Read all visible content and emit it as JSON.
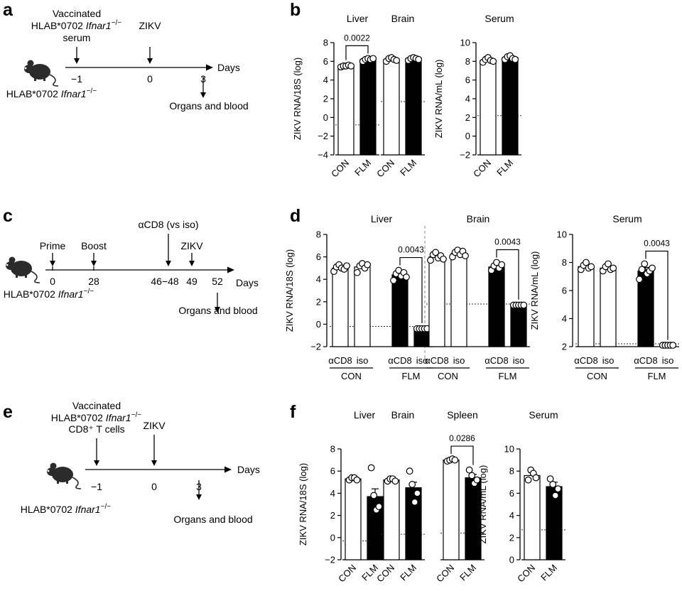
{
  "figure": {
    "panel_letters": [
      "a",
      "b",
      "c",
      "d",
      "e",
      "f"
    ]
  },
  "timelines": {
    "a": {
      "top_labels": [
        {
          "lines": [
            "Vaccinated",
            "HLAB*0702 |Ifnar1−/−|",
            "serum"
          ],
          "x": "−1"
        },
        {
          "lines": [
            "ZIKV"
          ],
          "x": "0"
        }
      ],
      "tick_labels": [
        "−1",
        "0",
        "3"
      ],
      "days_label": "Days",
      "mouse_label": "HLAB*0702 |Ifnar1−/−|",
      "bottom_label": "Organs and blood"
    },
    "c": {
      "top_labels": [
        {
          "lines": [
            "Prime"
          ],
          "x": "0"
        },
        {
          "lines": [
            "Boost"
          ],
          "x": "28"
        },
        {
          "lines": [
            "αCD8 (vs iso)"
          ],
          "x": "46−48"
        },
        {
          "lines": [
            "ZIKV"
          ],
          "x": "49"
        }
      ],
      "tick_labels": [
        "0",
        "28",
        "46−48",
        "49",
        "52"
      ],
      "days_label": "Days",
      "mouse_label": "HLAB*0702 |Ifnar1−/−|",
      "bottom_label": "Organs and blood"
    },
    "e": {
      "top_labels": [
        {
          "lines": [
            "Vaccinated",
            "HLAB*0702 |Ifnar1−/−|",
            "CD8⁺ T cells"
          ],
          "x": "−1"
        },
        {
          "lines": [
            "ZIKV"
          ],
          "x": "0"
        }
      ],
      "tick_labels": [
        "−1",
        "0",
        "3"
      ],
      "days_label": "Days",
      "mouse_label": "HLAB*0702 |Ifnar1−/−|",
      "bottom_label": "Organs and blood"
    }
  },
  "chart_data": [
    {
      "panel": "b",
      "type": "bar",
      "axis": "ZIKV RNA/18S (log)",
      "ylim": [
        -4,
        8
      ],
      "yticks": [
        -4,
        -2,
        0,
        2,
        4,
        6,
        8
      ],
      "groups": [
        {
          "title": "Liver",
          "categories": [
            "CON",
            "FLM"
          ],
          "values": [
            5.5,
            6.2
          ],
          "errors": [
            0.05,
            0.1
          ],
          "points": [
            [
              5.4,
              5.5,
              5.5,
              5.6,
              5.5
            ],
            [
              6.0,
              6.2,
              6.3,
              6.2,
              6.3
            ]
          ],
          "lod": -0.8,
          "pvalues": [
            {
              "between": [
                0,
                1
              ],
              "text": "0.0022"
            }
          ]
        },
        {
          "title": "Brain",
          "categories": [
            "CON",
            "FLM"
          ],
          "values": [
            6.2,
            6.3
          ],
          "errors": [
            0.1,
            0.1
          ],
          "points": [
            [
              6.0,
              6.3,
              6.4,
              6.2,
              6.1
            ],
            [
              6.1,
              6.3,
              6.4,
              6.3,
              6.2
            ]
          ],
          "lod": 1.7,
          "pvalues": []
        }
      ]
    },
    {
      "panel": "b",
      "type": "bar",
      "axis": "ZIKV RNA/mL (log)",
      "ylim": [
        -2,
        10
      ],
      "yticks": [
        -2,
        0,
        2,
        4,
        6,
        8,
        10
      ],
      "groups": [
        {
          "title": "Serum",
          "categories": [
            "CON",
            "FLM"
          ],
          "values": [
            8.1,
            8.4
          ],
          "errors": [
            0.15,
            0.15
          ],
          "points": [
            [
              7.9,
              8.2,
              8.4,
              8.1,
              8.0
            ],
            [
              8.2,
              8.5,
              8.6,
              8.3,
              8.2
            ]
          ],
          "lod": 2.2,
          "pvalues": []
        }
      ]
    },
    {
      "panel": "d",
      "type": "bar",
      "axis": "ZIKV RNA/18S (log)",
      "ylim": [
        -2,
        8
      ],
      "yticks": [
        -2,
        0,
        2,
        4,
        6,
        8
      ],
      "groups": [
        {
          "title": "Liver",
          "categories": [
            "αCD8",
            "iso",
            "αCD8",
            "iso"
          ],
          "group_labels": [
            "CON",
            "FLM"
          ],
          "values": [
            5.0,
            5.1,
            4.4,
            -0.4
          ],
          "errors": [
            0.15,
            0.2,
            0.25,
            0.05
          ],
          "points": [
            [
              4.7,
              5.1,
              5.3,
              5.0,
              4.9,
              5.2
            ],
            [
              4.6,
              5.2,
              5.4,
              5.0,
              5.3
            ],
            [
              3.9,
              4.5,
              4.8,
              4.3,
              4.6,
              4.2
            ],
            [
              -0.4,
              -0.4,
              -0.4,
              -0.4,
              -0.4
            ]
          ],
          "lod": -0.2,
          "pvalues": [
            {
              "between": [
                2,
                3
              ],
              "text": "0.0043"
            }
          ]
        },
        {
          "title": "Brain",
          "categories": [
            "αCD8",
            "iso",
            "αCD8",
            "iso"
          ],
          "group_labels": [
            "CON",
            "FLM"
          ],
          "values": [
            6.0,
            6.3,
            5.1,
            1.7
          ],
          "errors": [
            0.15,
            0.15,
            0.15,
            0.05
          ],
          "points": [
            [
              5.7,
              6.2,
              6.4,
              5.9,
              6.1,
              5.8
            ],
            [
              6.0,
              6.4,
              6.6,
              6.2,
              6.5,
              6.1
            ],
            [
              4.8,
              5.2,
              5.5,
              5.0,
              5.3
            ],
            [
              1.7,
              1.7,
              1.7,
              1.7,
              1.7
            ]
          ],
          "lod": 1.8,
          "pvalues": [
            {
              "between": [
                2,
                3
              ],
              "text": "0.0043"
            }
          ]
        }
      ]
    },
    {
      "panel": "d",
      "type": "bar",
      "axis": "ZIKV RNA/mL (log)",
      "ylim": [
        2,
        10
      ],
      "yticks": [
        2,
        4,
        6,
        8,
        10
      ],
      "groups": [
        {
          "title": "Serum",
          "categories": [
            "αCD8",
            "iso",
            "αCD8",
            "iso"
          ],
          "group_labels": [
            "CON",
            "FLM"
          ],
          "values": [
            7.7,
            7.6,
            7.4,
            2.1
          ],
          "errors": [
            0.1,
            0.1,
            0.25,
            0.02
          ],
          "points": [
            [
              7.5,
              7.8,
              8.0,
              7.6,
              7.7
            ],
            [
              7.4,
              7.7,
              7.9,
              7.5,
              7.6
            ],
            [
              6.8,
              7.5,
              7.9,
              7.2,
              7.4,
              7.6
            ],
            [
              2.1,
              2.1,
              2.1,
              2.1,
              2.1
            ]
          ],
          "lod": 2.2,
          "pvalues": [
            {
              "between": [
                2,
                3
              ],
              "text": "0.0043"
            }
          ]
        }
      ]
    },
    {
      "panel": "f",
      "type": "bar",
      "axis": "ZIKV RNA/18S (log)",
      "ylim": [
        -2,
        8
      ],
      "yticks": [
        -2,
        0,
        2,
        4,
        6,
        8
      ],
      "groups": [
        {
          "title": "Liver",
          "categories": [
            "CON",
            "FLM"
          ],
          "values": [
            5.3,
            3.7
          ],
          "errors": [
            0.1,
            0.7
          ],
          "points": [
            [
              5.2,
              5.4,
              5.4,
              5.2
            ],
            [
              6.3,
              3.8,
              2.5,
              2.8
            ]
          ],
          "lod": -0.3,
          "pvalues": []
        },
        {
          "title": "Brain",
          "categories": [
            "CON",
            "FLM"
          ],
          "values": [
            5.2,
            4.5
          ],
          "errors": [
            0.1,
            0.5
          ],
          "points": [
            [
              5.1,
              5.3,
              5.3,
              5.1
            ],
            [
              6.0,
              4.8,
              3.2,
              4.0
            ]
          ],
          "lod": 0.3,
          "pvalues": []
        },
        {
          "title": "Spleen",
          "categories": [
            "CON",
            "FLM"
          ],
          "values": [
            7.0,
            5.4
          ],
          "errors": [
            0.05,
            0.3
          ],
          "points": [
            [
              6.9,
              7.0,
              7.1,
              7.0
            ],
            [
              6.1,
              5.6,
              4.9,
              5.2
            ]
          ],
          "lod": 0.4,
          "pvalues": [
            {
              "between": [
                0,
                1
              ],
              "text": "0.0286"
            }
          ]
        }
      ]
    },
    {
      "panel": "f",
      "type": "bar",
      "axis": "ZIKV RNA/mL (log)",
      "ylim": [
        0,
        10
      ],
      "yticks": [
        0,
        2,
        4,
        6,
        8,
        10
      ],
      "groups": [
        {
          "title": "Serum",
          "categories": [
            "CON",
            "FLM"
          ],
          "values": [
            7.6,
            6.6
          ],
          "errors": [
            0.25,
            0.4
          ],
          "points": [
            [
              7.2,
              8.1,
              7.8,
              7.4
            ],
            [
              7.3,
              6.8,
              5.8,
              6.4
            ]
          ],
          "lod": 2.7,
          "pvalues": []
        }
      ]
    }
  ]
}
